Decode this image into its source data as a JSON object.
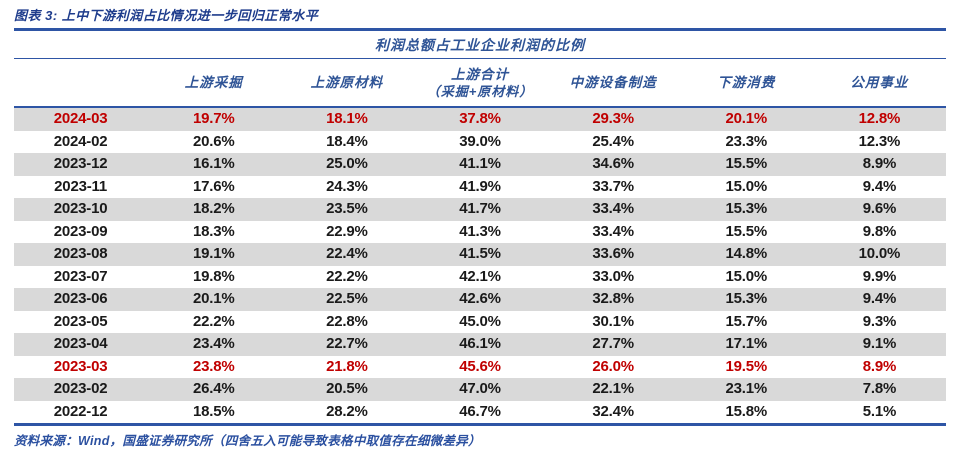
{
  "title": "图表 3:  上中下游利润占比情况进一步回归正常水平",
  "footer": "资料来源：Wind，国盛证券研究所（四舍五入可能导致表格中取值存在细微差异）",
  "colors": {
    "accent_blue": "#2e55a5",
    "header_text_blue": "#2f5496",
    "title_blue": "#1e3c8c",
    "highlight_red": "#c00000",
    "stripe_gray": "#d9d9d9"
  },
  "table": {
    "caption": "利润总额占工业企业利润的比例",
    "columns": [
      {
        "label": ""
      },
      {
        "label": "上游采掘"
      },
      {
        "label": "上游原材料"
      },
      {
        "label": "上游合计",
        "sub": "（采掘+原材料）"
      },
      {
        "label": "中游设备制造"
      },
      {
        "label": "下游消费"
      },
      {
        "label": "公用事业"
      }
    ],
    "rows": [
      {
        "date": "2024-03",
        "values": [
          "19.7%",
          "18.1%",
          "37.8%",
          "29.3%",
          "20.1%",
          "12.8%"
        ],
        "highlight": true
      },
      {
        "date": "2024-02",
        "values": [
          "20.6%",
          "18.4%",
          "39.0%",
          "25.4%",
          "23.3%",
          "12.3%"
        ],
        "highlight": false
      },
      {
        "date": "2023-12",
        "values": [
          "16.1%",
          "25.0%",
          "41.1%",
          "34.6%",
          "15.5%",
          "8.9%"
        ],
        "highlight": false
      },
      {
        "date": "2023-11",
        "values": [
          "17.6%",
          "24.3%",
          "41.9%",
          "33.7%",
          "15.0%",
          "9.4%"
        ],
        "highlight": false
      },
      {
        "date": "2023-10",
        "values": [
          "18.2%",
          "23.5%",
          "41.7%",
          "33.4%",
          "15.3%",
          "9.6%"
        ],
        "highlight": false
      },
      {
        "date": "2023-09",
        "values": [
          "18.3%",
          "22.9%",
          "41.3%",
          "33.4%",
          "15.5%",
          "9.8%"
        ],
        "highlight": false
      },
      {
        "date": "2023-08",
        "values": [
          "19.1%",
          "22.4%",
          "41.5%",
          "33.6%",
          "14.8%",
          "10.0%"
        ],
        "highlight": false
      },
      {
        "date": "2023-07",
        "values": [
          "19.8%",
          "22.2%",
          "42.1%",
          "33.0%",
          "15.0%",
          "9.9%"
        ],
        "highlight": false
      },
      {
        "date": "2023-06",
        "values": [
          "20.1%",
          "22.5%",
          "42.6%",
          "32.8%",
          "15.3%",
          "9.4%"
        ],
        "highlight": false
      },
      {
        "date": "2023-05",
        "values": [
          "22.2%",
          "22.8%",
          "45.0%",
          "30.1%",
          "15.7%",
          "9.3%"
        ],
        "highlight": false
      },
      {
        "date": "2023-04",
        "values": [
          "23.4%",
          "22.7%",
          "46.1%",
          "27.7%",
          "17.1%",
          "9.1%"
        ],
        "highlight": false
      },
      {
        "date": "2023-03",
        "values": [
          "23.8%",
          "21.8%",
          "45.6%",
          "26.0%",
          "19.5%",
          "8.9%"
        ],
        "highlight": true
      },
      {
        "date": "2023-02",
        "values": [
          "26.4%",
          "20.5%",
          "47.0%",
          "22.1%",
          "23.1%",
          "7.8%"
        ],
        "highlight": false
      },
      {
        "date": "2022-12",
        "values": [
          "18.5%",
          "28.2%",
          "46.7%",
          "32.4%",
          "15.8%",
          "5.1%"
        ],
        "highlight": false
      }
    ]
  },
  "chart_data": {
    "type": "table",
    "title": "利润总额占工业企业利润的比例",
    "unit": "%",
    "categories": [
      "2024-03",
      "2024-02",
      "2023-12",
      "2023-11",
      "2023-10",
      "2023-09",
      "2023-08",
      "2023-07",
      "2023-06",
      "2023-05",
      "2023-04",
      "2023-03",
      "2023-02",
      "2022-12"
    ],
    "series": [
      {
        "name": "上游采掘",
        "values": [
          19.7,
          20.6,
          16.1,
          17.6,
          18.2,
          18.3,
          19.1,
          19.8,
          20.1,
          22.2,
          23.4,
          23.8,
          26.4,
          18.5
        ]
      },
      {
        "name": "上游原材料",
        "values": [
          18.1,
          18.4,
          25.0,
          24.3,
          23.5,
          22.9,
          22.4,
          22.2,
          22.5,
          22.8,
          22.7,
          21.8,
          20.5,
          28.2
        ]
      },
      {
        "name": "上游合计（采掘+原材料）",
        "values": [
          37.8,
          39.0,
          41.1,
          41.9,
          41.7,
          41.3,
          41.5,
          42.1,
          42.6,
          45.0,
          46.1,
          45.6,
          47.0,
          46.7
        ]
      },
      {
        "name": "中游设备制造",
        "values": [
          29.3,
          25.4,
          34.6,
          33.7,
          33.4,
          33.4,
          33.6,
          33.0,
          32.8,
          30.1,
          27.7,
          26.0,
          22.1,
          32.4
        ]
      },
      {
        "name": "下游消费",
        "values": [
          20.1,
          23.3,
          15.5,
          15.0,
          15.3,
          15.5,
          14.8,
          15.0,
          15.3,
          15.7,
          17.1,
          19.5,
          23.1,
          15.8
        ]
      },
      {
        "name": "公用事业",
        "values": [
          12.8,
          12.3,
          8.9,
          9.4,
          9.6,
          9.8,
          10.0,
          9.9,
          9.4,
          9.3,
          9.1,
          8.9,
          7.8,
          5.1
        ]
      }
    ],
    "highlighted_rows": [
      "2024-03",
      "2023-03"
    ],
    "highlight_color": "#c00000"
  }
}
